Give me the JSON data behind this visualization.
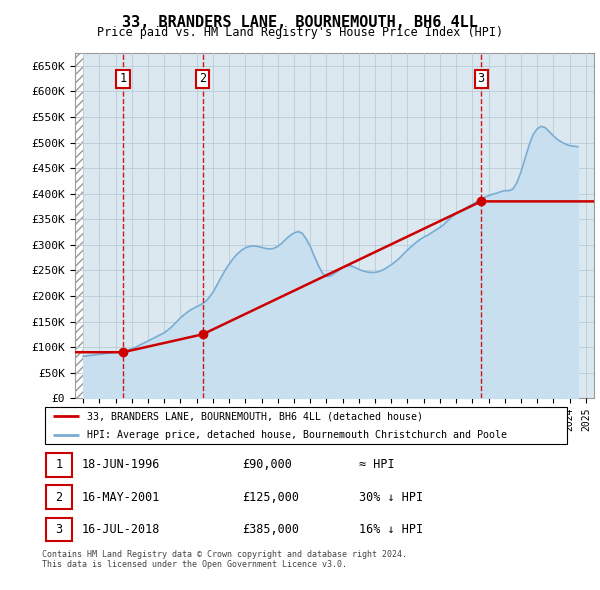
{
  "title": "33, BRANDERS LANE, BOURNEMOUTH, BH6 4LL",
  "subtitle": "Price paid vs. HM Land Registry's House Price Index (HPI)",
  "ylabel_ticks": [
    "£0",
    "£50K",
    "£100K",
    "£150K",
    "£200K",
    "£250K",
    "£300K",
    "£350K",
    "£400K",
    "£450K",
    "£500K",
    "£550K",
    "£600K",
    "£650K"
  ],
  "ytick_values": [
    0,
    50000,
    100000,
    150000,
    200000,
    250000,
    300000,
    350000,
    400000,
    450000,
    500000,
    550000,
    600000,
    650000
  ],
  "ylim": [
    0,
    675000
  ],
  "xlim_start": 1993.5,
  "xlim_end": 2025.5,
  "transactions": [
    {
      "date_num": 1996.46,
      "price": 90000,
      "label": "1"
    },
    {
      "date_num": 2001.37,
      "price": 125000,
      "label": "2"
    },
    {
      "date_num": 2018.54,
      "price": 385000,
      "label": "3"
    }
  ],
  "transaction_annotations": [
    {
      "label": "1",
      "date": "18-JUN-1996",
      "price": "£90,000",
      "vs_hpi": "≈ HPI"
    },
    {
      "label": "2",
      "date": "16-MAY-2001",
      "price": "£125,000",
      "vs_hpi": "30% ↓ HPI"
    },
    {
      "label": "3",
      "date": "16-JUL-2018",
      "price": "£385,000",
      "vs_hpi": "16% ↓ HPI"
    }
  ],
  "legend_property": "33, BRANDERS LANE, BOURNEMOUTH, BH6 4LL (detached house)",
  "legend_hpi": "HPI: Average price, detached house, Bournemouth Christchurch and Poole",
  "footer": "Contains HM Land Registry data © Crown copyright and database right 2024.\nThis data is licensed under the Open Government Licence v3.0.",
  "property_color": "#cc0000",
  "hpi_color": "#7aadd4",
  "hpi_fill_color": "#c8dff0",
  "chart_bg_color": "#dbe8f0",
  "grid_color": "#b8ccd8",
  "hpi_data": {
    "dates": [
      1994.0,
      1994.25,
      1994.5,
      1994.75,
      1995.0,
      1995.25,
      1995.5,
      1995.75,
      1996.0,
      1996.25,
      1996.5,
      1996.75,
      1997.0,
      1997.25,
      1997.5,
      1997.75,
      1998.0,
      1998.25,
      1998.5,
      1998.75,
      1999.0,
      1999.25,
      1999.5,
      1999.75,
      2000.0,
      2000.25,
      2000.5,
      2000.75,
      2001.0,
      2001.25,
      2001.5,
      2001.75,
      2002.0,
      2002.25,
      2002.5,
      2002.75,
      2003.0,
      2003.25,
      2003.5,
      2003.75,
      2004.0,
      2004.25,
      2004.5,
      2004.75,
      2005.0,
      2005.25,
      2005.5,
      2005.75,
      2006.0,
      2006.25,
      2006.5,
      2006.75,
      2007.0,
      2007.25,
      2007.5,
      2007.75,
      2008.0,
      2008.25,
      2008.5,
      2008.75,
      2009.0,
      2009.25,
      2009.5,
      2009.75,
      2010.0,
      2010.25,
      2010.5,
      2010.75,
      2011.0,
      2011.25,
      2011.5,
      2011.75,
      2012.0,
      2012.25,
      2012.5,
      2012.75,
      2013.0,
      2013.25,
      2013.5,
      2013.75,
      2014.0,
      2014.25,
      2014.5,
      2014.75,
      2015.0,
      2015.25,
      2015.5,
      2015.75,
      2016.0,
      2016.25,
      2016.5,
      2016.75,
      2017.0,
      2017.25,
      2017.5,
      2017.75,
      2018.0,
      2018.25,
      2018.5,
      2018.75,
      2019.0,
      2019.25,
      2019.5,
      2019.75,
      2020.0,
      2020.25,
      2020.5,
      2020.75,
      2021.0,
      2021.25,
      2021.5,
      2021.75,
      2022.0,
      2022.25,
      2022.5,
      2022.75,
      2023.0,
      2023.25,
      2023.5,
      2023.75,
      2024.0,
      2024.25,
      2024.5
    ],
    "values": [
      82000,
      83000,
      84000,
      85000,
      86000,
      87000,
      88000,
      89000,
      90000,
      91000,
      92000,
      94000,
      97000,
      100000,
      104000,
      108000,
      112000,
      116000,
      120000,
      124000,
      128000,
      134000,
      141000,
      149000,
      157000,
      164000,
      170000,
      175000,
      179000,
      183000,
      188000,
      196000,
      207000,
      221000,
      236000,
      250000,
      262000,
      273000,
      282000,
      289000,
      294000,
      297000,
      298000,
      297000,
      295000,
      293000,
      292000,
      293000,
      297000,
      303000,
      311000,
      318000,
      323000,
      326000,
      323000,
      312000,
      297000,
      278000,
      260000,
      245000,
      238000,
      239000,
      244000,
      250000,
      256000,
      259000,
      259000,
      256000,
      252000,
      249000,
      247000,
      246000,
      246000,
      248000,
      251000,
      256000,
      261000,
      267000,
      274000,
      282000,
      290000,
      297000,
      304000,
      310000,
      315000,
      319000,
      324000,
      329000,
      334000,
      340000,
      348000,
      355000,
      361000,
      366000,
      370000,
      375000,
      379000,
      384000,
      389000,
      393000,
      396000,
      399000,
      401000,
      404000,
      406000,
      406000,
      409000,
      422000,
      443000,
      469000,
      495000,
      516000,
      527000,
      532000,
      529000,
      521000,
      513000,
      506000,
      501000,
      497000,
      494000,
      493000,
      492000
    ]
  },
  "property_line_segments": [
    {
      "dates": [
        1994.0,
        1996.46
      ],
      "prices": [
        90000,
        90000
      ]
    },
    {
      "dates": [
        1996.46,
        2001.37
      ],
      "prices": [
        90000,
        125000
      ]
    },
    {
      "dates": [
        2001.37,
        2018.54
      ],
      "prices": [
        125000,
        385000
      ]
    },
    {
      "dates": [
        2018.54,
        2025.5
      ],
      "prices": [
        385000,
        385000
      ]
    }
  ]
}
